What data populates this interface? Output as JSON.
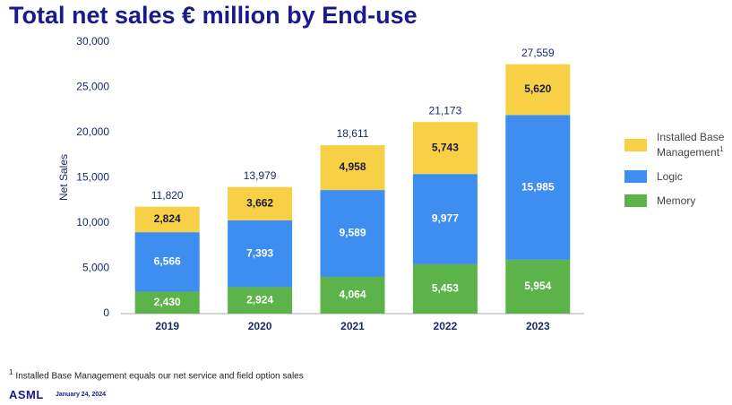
{
  "title": "Total net sales € million by End-use",
  "chart_data": {
    "type": "stacked-bar",
    "y_label": "Net Sales",
    "categories": [
      "2019",
      "2020",
      "2021",
      "2022",
      "2023"
    ],
    "series": [
      {
        "name": "Memory",
        "color": "#5cb349",
        "label_color": "#ffffff",
        "values": [
          2430,
          2924,
          4064,
          5453,
          5954
        ],
        "value_labels": [
          "2,430",
          "2,924",
          "4,064",
          "5,453",
          "5,954"
        ]
      },
      {
        "name": "Logic",
        "color": "#3d8ef0",
        "label_color": "#ffffff",
        "values": [
          6566,
          7393,
          9589,
          9977,
          15985
        ],
        "value_labels": [
          "6,566",
          "7,393",
          "9,589",
          "9,977",
          "15,985"
        ]
      },
      {
        "name": "Installed Base Management",
        "name_superscript": "1",
        "color": "#f7d046",
        "label_color": "#1a1a3a",
        "values": [
          2824,
          3662,
          4958,
          5743,
          5620
        ],
        "value_labels": [
          "2,824",
          "3,662",
          "4,958",
          "5,743",
          "5,620"
        ]
      }
    ],
    "totals": [
      11820,
      13979,
      18611,
      21173,
      27559
    ],
    "total_labels": [
      "11,820",
      "13,979",
      "18,611",
      "21,173",
      "27,559"
    ],
    "ylim": [
      0,
      30000
    ],
    "yticks": [
      0,
      {
        "value": 5000,
        "label": "5,000"
      },
      {
        "value": 10000,
        "label": "10,000"
      },
      {
        "value": 15000,
        "label": "15,000"
      },
      {
        "value": 20000,
        "label": "20,000"
      },
      {
        "value": 25000,
        "label": "25,000"
      },
      {
        "value": 30000,
        "label": "30,000"
      }
    ],
    "grid": false
  },
  "footnote": {
    "marker": "1",
    "text": "Installed Base Management equals our net service and field option sales"
  },
  "footer": {
    "logo": "ASML",
    "date": "January 24, 2024"
  }
}
